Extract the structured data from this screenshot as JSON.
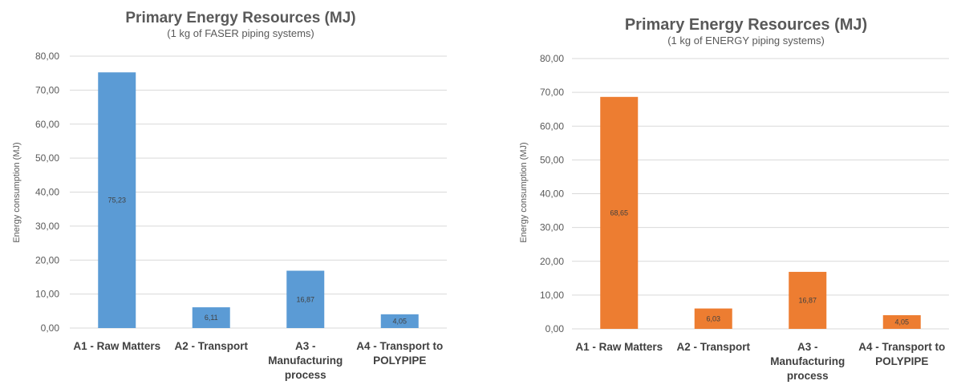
{
  "chart_data": [
    {
      "type": "bar",
      "title": "Primary Energy Resources (MJ)",
      "subtitle": "(1 kg of FASER piping systems)",
      "xlabel": "",
      "ylabel": "Energy consumption (MJ)",
      "ylim": [
        0,
        80
      ],
      "yticks": [
        "0,00",
        "10,00",
        "20,00",
        "30,00",
        "40,00",
        "50,00",
        "60,00",
        "70,00",
        "80,00"
      ],
      "grid": true,
      "color": "#5b9bd5",
      "categories": [
        [
          "A1 - Raw Matters"
        ],
        [
          "A2 - Transport"
        ],
        [
          "A3 -",
          "Manufacturing",
          "process"
        ],
        [
          "A4 - Transport to",
          "POLYPIPE"
        ]
      ],
      "values": [
        75.23,
        6.11,
        16.87,
        4.05
      ],
      "labels": [
        "75,23",
        "6,11",
        "16,87",
        "4,05"
      ]
    },
    {
      "type": "bar",
      "title": "Primary Energy Resources (MJ)",
      "subtitle": "(1 kg of ENERGY piping systems)",
      "xlabel": "",
      "ylabel": "Energy consumption (MJ)",
      "ylim": [
        0,
        80
      ],
      "yticks": [
        "0,00",
        "10,00",
        "20,00",
        "30,00",
        "40,00",
        "50,00",
        "60,00",
        "70,00",
        "80,00"
      ],
      "grid": true,
      "color": "#ed7d31",
      "categories": [
        [
          "A1 - Raw Matters"
        ],
        [
          "A2 - Transport"
        ],
        [
          "A3 -",
          "Manufacturing",
          "process"
        ],
        [
          "A4 - Transport to",
          "POLYPIPE"
        ]
      ],
      "values": [
        68.65,
        6.03,
        16.87,
        4.05
      ],
      "labels": [
        "68,65",
        "6,03",
        "16,87",
        "4,05"
      ]
    }
  ]
}
